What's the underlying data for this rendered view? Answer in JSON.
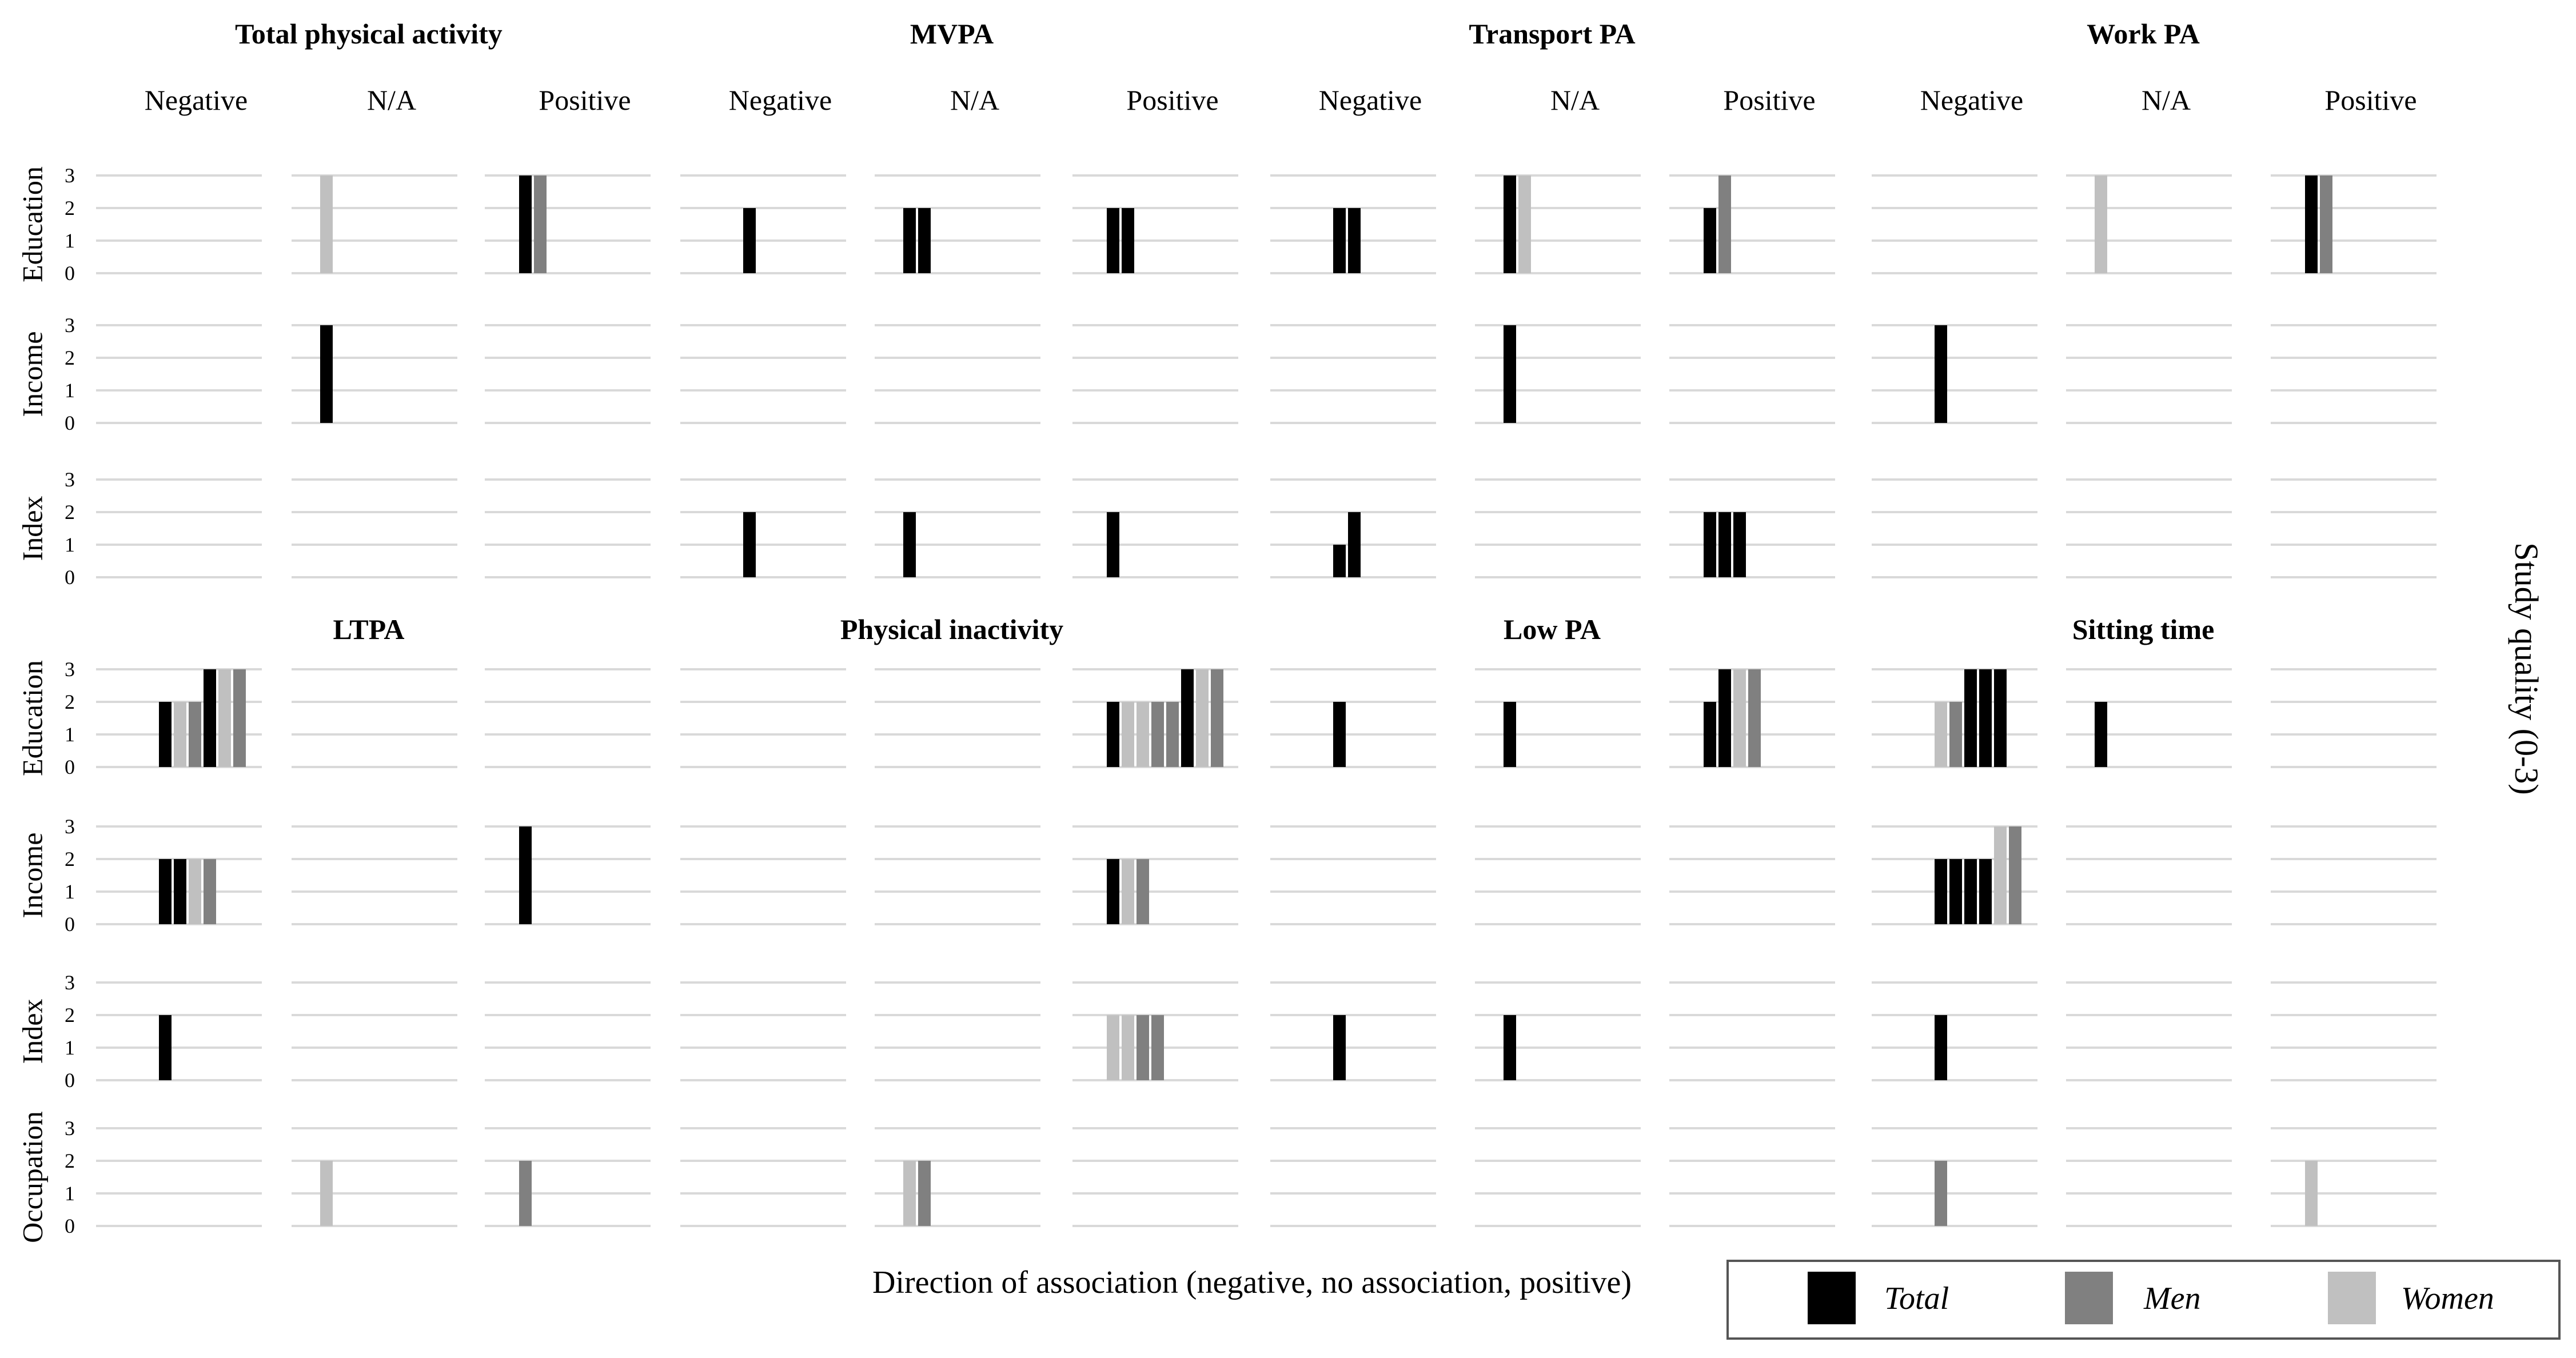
{
  "colors": {
    "Total": "#000000",
    "Men": "#808080",
    "Women": "#c0c0c0",
    "grid": "#d9d9d9",
    "panelBg": "#ffffff"
  },
  "chart_data": {
    "type": "bar",
    "y_axis_label": "Study quality (0-3)",
    "x_axis_label": "Direction of association (negative, no association, positive)",
    "ylim": [
      0,
      3
    ],
    "y_ticks": [
      "0",
      "1",
      "2",
      "3"
    ],
    "legend": {
      "placement": "bottom-right",
      "entries": [
        {
          "name": "Total",
          "color": "#000000"
        },
        {
          "name": "Men",
          "color": "#808080"
        },
        {
          "name": "Women",
          "color": "#c0c0c0"
        }
      ]
    },
    "directions": [
      "Negative",
      "N/A",
      "Positive"
    ],
    "groups": [
      {
        "title": "Total physical activity",
        "block": "top",
        "rows": [
          {
            "ses": "Education",
            "cells": [
              [],
              [
                {
                  "g": "Women",
                  "v": 3
                }
              ],
              [
                {
                  "g": "Total",
                  "v": 3
                },
                {
                  "g": "Men",
                  "v": 3
                }
              ]
            ]
          },
          {
            "ses": "Income",
            "cells": [
              [],
              [
                {
                  "g": "Total",
                  "v": 3
                }
              ],
              []
            ]
          },
          {
            "ses": "Index",
            "cells": [
              [],
              [],
              []
            ]
          }
        ]
      },
      {
        "title": "MVPA",
        "block": "top",
        "rows": [
          {
            "ses": "Education",
            "cells": [
              [
                {
                  "g": "Total",
                  "v": 2
                }
              ],
              [
                {
                  "g": "Total",
                  "v": 2
                },
                {
                  "g": "Total",
                  "v": 2
                }
              ],
              [
                {
                  "g": "Total",
                  "v": 2
                },
                {
                  "g": "Total",
                  "v": 2
                }
              ]
            ]
          },
          {
            "ses": "Income",
            "cells": [
              [],
              [],
              []
            ]
          },
          {
            "ses": "Index",
            "cells": [
              [
                {
                  "g": "Total",
                  "v": 2
                }
              ],
              [
                {
                  "g": "Total",
                  "v": 2
                }
              ],
              [
                {
                  "g": "Total",
                  "v": 2
                }
              ]
            ]
          }
        ]
      },
      {
        "title": "Transport PA",
        "block": "top",
        "rows": [
          {
            "ses": "Education",
            "cells": [
              [
                {
                  "g": "Total",
                  "v": 2
                },
                {
                  "g": "Total",
                  "v": 2
                }
              ],
              [
                {
                  "g": "Total",
                  "v": 3
                },
                {
                  "g": "Women",
                  "v": 3
                }
              ],
              [
                {
                  "g": "Total",
                  "v": 2
                },
                {
                  "g": "Men",
                  "v": 3
                }
              ]
            ]
          },
          {
            "ses": "Income",
            "cells": [
              [],
              [
                {
                  "g": "Total",
                  "v": 3
                }
              ],
              []
            ]
          },
          {
            "ses": "Index",
            "cells": [
              [
                {
                  "g": "Total",
                  "v": 1
                },
                {
                  "g": "Total",
                  "v": 2
                }
              ],
              [],
              [
                {
                  "g": "Total",
                  "v": 2
                },
                {
                  "g": "Total",
                  "v": 2
                },
                {
                  "g": "Total",
                  "v": 2
                }
              ]
            ]
          }
        ]
      },
      {
        "title": "Work PA",
        "block": "top",
        "rows": [
          {
            "ses": "Education",
            "cells": [
              [],
              [
                {
                  "g": "Women",
                  "v": 3
                }
              ],
              [
                {
                  "g": "Total",
                  "v": 3
                },
                {
                  "g": "Men",
                  "v": 3
                }
              ]
            ]
          },
          {
            "ses": "Income",
            "cells": [
              [
                {
                  "g": "Total",
                  "v": 3
                }
              ],
              [],
              []
            ]
          },
          {
            "ses": "Index",
            "cells": [
              [],
              [],
              []
            ]
          }
        ]
      },
      {
        "title": "LTPA",
        "block": "bottom",
        "rows": [
          {
            "ses": "Education",
            "cells": [
              [
                {
                  "g": "Total",
                  "v": 2
                },
                {
                  "g": "Women",
                  "v": 2
                },
                {
                  "g": "Men",
                  "v": 2
                },
                {
                  "g": "Total",
                  "v": 3
                },
                {
                  "g": "Women",
                  "v": 3
                },
                {
                  "g": "Men",
                  "v": 3
                }
              ],
              [],
              []
            ]
          },
          {
            "ses": "Income",
            "cells": [
              [
                {
                  "g": "Total",
                  "v": 2
                },
                {
                  "g": "Total",
                  "v": 2
                },
                {
                  "g": "Women",
                  "v": 2
                },
                {
                  "g": "Men",
                  "v": 2
                }
              ],
              [],
              [
                {
                  "g": "Total",
                  "v": 3
                }
              ]
            ]
          },
          {
            "ses": "Index",
            "cells": [
              [
                {
                  "g": "Total",
                  "v": 2
                }
              ],
              [],
              []
            ]
          },
          {
            "ses": "Occupation",
            "cells": [
              [],
              [
                {
                  "g": "Women",
                  "v": 2
                }
              ],
              [
                {
                  "g": "Men",
                  "v": 2
                }
              ]
            ]
          }
        ]
      },
      {
        "title": "Physical inactivity",
        "block": "bottom",
        "rows": [
          {
            "ses": "Education",
            "cells": [
              [],
              [],
              [
                {
                  "g": "Total",
                  "v": 2
                },
                {
                  "g": "Women",
                  "v": 2
                },
                {
                  "g": "Women",
                  "v": 2
                },
                {
                  "g": "Men",
                  "v": 2
                },
                {
                  "g": "Men",
                  "v": 2
                },
                {
                  "g": "Total",
                  "v": 3
                },
                {
                  "g": "Women",
                  "v": 3
                },
                {
                  "g": "Men",
                  "v": 3
                }
              ]
            ]
          },
          {
            "ses": "Income",
            "cells": [
              [],
              [],
              [
                {
                  "g": "Total",
                  "v": 2
                },
                {
                  "g": "Women",
                  "v": 2
                },
                {
                  "g": "Men",
                  "v": 2
                }
              ]
            ]
          },
          {
            "ses": "Index",
            "cells": [
              [],
              [],
              [
                {
                  "g": "Women",
                  "v": 2
                },
                {
                  "g": "Women",
                  "v": 2
                },
                {
                  "g": "Men",
                  "v": 2
                },
                {
                  "g": "Men",
                  "v": 2
                }
              ]
            ]
          },
          {
            "ses": "Occupation",
            "cells": [
              [],
              [
                {
                  "g": "Women",
                  "v": 2
                },
                {
                  "g": "Men",
                  "v": 2
                }
              ],
              []
            ]
          }
        ]
      },
      {
        "title": "Low PA",
        "block": "bottom",
        "rows": [
          {
            "ses": "Education",
            "cells": [
              [
                {
                  "g": "Total",
                  "v": 2
                }
              ],
              [
                {
                  "g": "Total",
                  "v": 2
                }
              ],
              [
                {
                  "g": "Total",
                  "v": 2
                },
                {
                  "g": "Total",
                  "v": 3
                },
                {
                  "g": "Women",
                  "v": 3
                },
                {
                  "g": "Men",
                  "v": 3
                }
              ]
            ]
          },
          {
            "ses": "Income",
            "cells": [
              [],
              [],
              []
            ]
          },
          {
            "ses": "Index",
            "cells": [
              [
                {
                  "g": "Total",
                  "v": 2
                }
              ],
              [
                {
                  "g": "Total",
                  "v": 2
                }
              ],
              []
            ]
          },
          {
            "ses": "Occupation",
            "cells": [
              [],
              [],
              []
            ]
          }
        ]
      },
      {
        "title": "Sitting time",
        "block": "bottom",
        "rows": [
          {
            "ses": "Education",
            "cells": [
              [
                {
                  "g": "Women",
                  "v": 2
                },
                {
                  "g": "Men",
                  "v": 2
                },
                {
                  "g": "Total",
                  "v": 3
                },
                {
                  "g": "Total",
                  "v": 3
                },
                {
                  "g": "Total",
                  "v": 3
                }
              ],
              [
                {
                  "g": "Total",
                  "v": 2
                }
              ],
              []
            ]
          },
          {
            "ses": "Income",
            "cells": [
              [
                {
                  "g": "Total",
                  "v": 2
                },
                {
                  "g": "Total",
                  "v": 2
                },
                {
                  "g": "Total",
                  "v": 2
                },
                {
                  "g": "Total",
                  "v": 2
                },
                {
                  "g": "Women",
                  "v": 3
                },
                {
                  "g": "Men",
                  "v": 3
                }
              ],
              [],
              []
            ]
          },
          {
            "ses": "Index",
            "cells": [
              [
                {
                  "g": "Total",
                  "v": 2
                }
              ],
              [],
              []
            ]
          },
          {
            "ses": "Occupation",
            "cells": [
              [
                {
                  "g": "Men",
                  "v": 2
                }
              ],
              [],
              [
                {
                  "g": "Women",
                  "v": 2
                }
              ]
            ]
          }
        ]
      }
    ]
  }
}
